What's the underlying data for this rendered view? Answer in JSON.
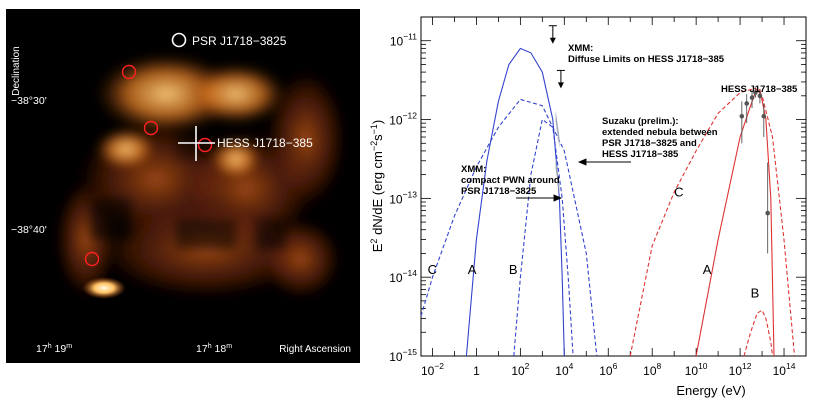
{
  "skymap": {
    "ylabel": "Declination",
    "xlabel": "Right Ascension",
    "dec_ticks": [
      "−38°30'",
      "−38°40'"
    ],
    "ra_ticks": [
      {
        "h": "17",
        "m": "19"
      },
      {
        "h": "17",
        "m": "18"
      }
    ],
    "labels": {
      "psr": "PSR J1718−3825",
      "hess": "HESS J1718−385"
    },
    "colors": {
      "background": "#000000",
      "emission": "#e07a20",
      "markers": "#ff2020"
    }
  },
  "chart_data": {
    "type": "line",
    "xlabel": "Energy (eV)",
    "ylabel_main": "E",
    "ylabel_sup": "2",
    "ylabel_rest": " dN/dE (erg cm",
    "ylabel_sup2": "−2",
    "ylabel_mid": "s",
    "ylabel_sup3": "−1",
    "ylabel_end": ")",
    "xscale": "log",
    "yscale": "log",
    "xlim": [
      0.003,
      1000000000000000.0
    ],
    "ylim": [
      1e-15,
      2e-11
    ],
    "x_tick_labels": [
      {
        "base": "10",
        "exp": "−2",
        "x": 0.01
      },
      {
        "base": "1",
        "exp": "",
        "x": 1
      },
      {
        "base": "10",
        "exp": "2",
        "x": 100
      },
      {
        "base": "10",
        "exp": "4",
        "x": 10000
      },
      {
        "base": "10",
        "exp": "6",
        "x": 1000000.0
      },
      {
        "base": "10",
        "exp": "8",
        "x": 100000000.0
      },
      {
        "base": "10",
        "exp": "10",
        "x": 10000000000.0
      },
      {
        "base": "10",
        "exp": "12",
        "x": 1000000000000.0
      },
      {
        "base": "10",
        "exp": "14",
        "x": 100000000000000.0
      }
    ],
    "y_tick_labels": [
      {
        "base": "10",
        "exp": "−15",
        "y": 1e-15
      },
      {
        "base": "10",
        "exp": "−14",
        "y": 1e-14
      },
      {
        "base": "10",
        "exp": "−13",
        "y": 1e-13
      },
      {
        "base": "10",
        "exp": "−12",
        "y": 1e-12
      },
      {
        "base": "10",
        "exp": "−11",
        "y": 1e-11
      }
    ],
    "colors": {
      "synchrotron": "#3344cc",
      "ic": "#dd3333",
      "data": "#555555",
      "suzaku": "#a0a8b8"
    },
    "series": [
      {
        "label": "A",
        "style": "solid",
        "color": "#3344cc",
        "x": [
          0.35,
          1,
          3,
          10,
          30,
          100,
          300,
          1000,
          3000,
          6000,
          8000,
          10000
        ],
        "y": [
          1e-15,
          3e-14,
          3e-13,
          1.7e-12,
          5e-12,
          8e-12,
          7e-12,
          4e-12,
          1e-12,
          1e-13,
          1e-14,
          1e-15
        ]
      },
      {
        "label": "B",
        "style": "dashed",
        "color": "#3344cc",
        "x": [
          50,
          100,
          300,
          1000,
          3000,
          8000,
          15000,
          25000
        ],
        "y": [
          1e-15,
          1e-14,
          2e-13,
          1e-12,
          8e-13,
          1e-13,
          1e-14,
          1e-15
        ]
      },
      {
        "label": "C",
        "style": "dashed",
        "color": "#3344cc",
        "x": [
          0.003,
          0.01,
          0.1,
          1,
          10,
          100,
          1000,
          10000,
          100000,
          300000
        ],
        "y": [
          3.2e-15,
          1e-14,
          6e-14,
          2.5e-13,
          8e-13,
          1.8e-12,
          1.5e-12,
          4e-13,
          2e-14,
          1e-15
        ]
      },
      {
        "label": "A",
        "style": "solid",
        "color": "#dd3333",
        "x": [
          10000000000.0,
          100000000000.0,
          1000000000000.0,
          3000000000000.0,
          5000000000000.0,
          8000000000000.0,
          15000000000000.0,
          25000000000000.0,
          35000000000000.0
        ],
        "y": [
          1e-15,
          3e-14,
          6e-13,
          1.5e-12,
          2.2e-12,
          2.4e-12,
          1e-12,
          1e-13,
          1e-15
        ]
      },
      {
        "label": "B",
        "style": "dashed",
        "color": "#dd3333",
        "x": [
          1500000000000.0,
          3000000000000.0,
          6000000000000.0,
          10000000000000.0,
          15000000000000.0,
          25000000000000.0,
          30000000000000.0
        ],
        "y": [
          1e-15,
          2e-15,
          3.5e-15,
          3.8e-15,
          3e-15,
          1.5e-15,
          1e-15
        ]
      },
      {
        "label": "C",
        "style": "dashed",
        "color": "#dd3333",
        "x": [
          10000000.0,
          100000000.0,
          1000000000.0,
          10000000000.0,
          100000000000.0,
          1000000000000.0,
          5000000000000.0,
          10000000000000.0,
          30000000000000.0,
          100000000000000.0,
          300000000000000.0
        ],
        "y": [
          1e-15,
          2.5e-14,
          1.2e-13,
          4e-13,
          1.2e-12,
          2.2e-12,
          2.5e-12,
          2e-12,
          6e-13,
          3e-14,
          1e-15
        ]
      }
    ],
    "curve_labels": [
      {
        "text": "C",
        "x": 0.006,
        "y": 1.1e-14
      },
      {
        "text": "A",
        "x": 0.4,
        "y": 1.1e-14
      },
      {
        "text": "B",
        "x": 30,
        "y": 1.1e-14
      },
      {
        "text": "C",
        "x": 1000000000.0,
        "y": 1.05e-13
      },
      {
        "text": "A",
        "x": 20000000000.0,
        "y": 1.1e-14
      },
      {
        "text": "B",
        "x": 3000000000000.0,
        "y": 5.5e-15
      }
    ],
    "hess_points": {
      "x": [
        1200000000000.0,
        2000000000000.0,
        3500000000000.0,
        5000000000000.0,
        8000000000000.0,
        12000000000000.0,
        18000000000000.0
      ],
      "y": [
        1.1e-12,
        1.6e-12,
        1.9e-12,
        2.2e-12,
        2e-12,
        1.1e-12,
        6.5e-14
      ],
      "yerr_low": [
        6e-13,
        7e-13,
        5e-13,
        3e-13,
        4e-13,
        5e-13,
        4.5e-14
      ],
      "yerr_high": [
        6e-13,
        5e-13,
        4e-13,
        3e-13,
        4e-13,
        5e-13,
        2.2e-13
      ]
    },
    "upper_limits": [
      {
        "x": 3000,
        "y": 1.55e-11
      },
      {
        "x": 7000,
        "y": 4.2e-12
      }
    ],
    "suzaku_bands": [
      {
        "x": [
          4000,
          6000
        ],
        "y": [
          1.2e-12,
          5.5e-13
        ]
      },
      {
        "x": [
          4000,
          6000
        ],
        "y": [
          3e-13,
          1.4e-13
        ]
      }
    ],
    "annotations": {
      "xmm_diffuse": [
        "XMM:",
        "Diffuse Limits on HESS J1718−385"
      ],
      "suzaku": [
        "Suzaku (prelim.):",
        "extended nebula between",
        "PSR J1718−3825 and",
        "HESS J1718−385"
      ],
      "xmm_pwn": [
        "XMM:",
        "compact PWN around",
        "PSR J1718−3825"
      ],
      "hess": "HESS J1718−385"
    }
  }
}
